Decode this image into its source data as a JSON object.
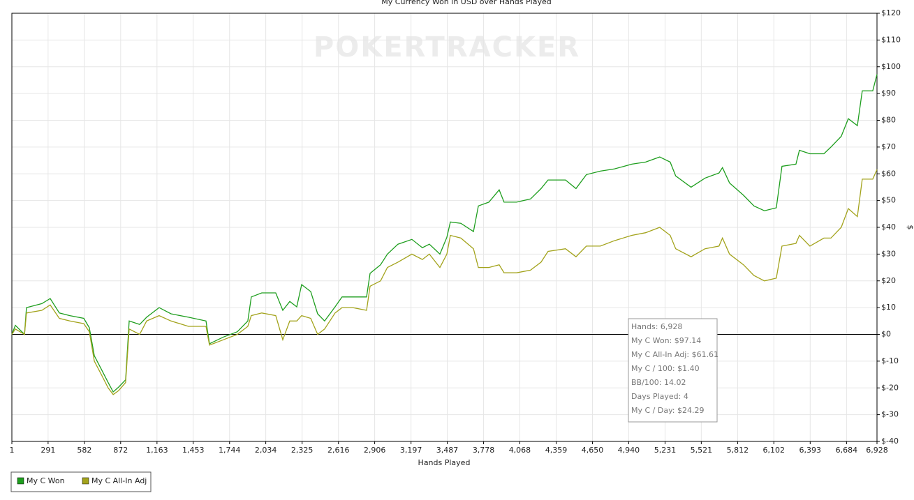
{
  "chart_data": {
    "type": "line",
    "title": "My Currency Won in USD over Hands Played",
    "watermark": "POKERTRACKER",
    "xlabel": "Hands Played",
    "ylabel": "$",
    "x": [
      1,
      29,
      102,
      118,
      241,
      308,
      381,
      465,
      577,
      621,
      661,
      717,
      772,
      812,
      856,
      912,
      940,
      1024,
      1080,
      1180,
      1275,
      1415,
      1555,
      1583,
      1695,
      1806,
      1890,
      1918,
      2002,
      2114,
      2170,
      2226,
      2282,
      2321,
      2394,
      2449,
      2505,
      2589,
      2645,
      2729,
      2841,
      2869,
      2953,
      3008,
      3092,
      3204,
      3288,
      3344,
      3428,
      3484,
      3512,
      3596,
      3697,
      3736,
      3820,
      3903,
      3942,
      4042,
      4154,
      4238,
      4294,
      4434,
      4518,
      4601,
      4713,
      4825,
      4965,
      5076,
      5188,
      5272,
      5316,
      5439,
      5551,
      5663,
      5691,
      5747,
      5859,
      5943,
      6027,
      6122,
      6167,
      6279,
      6307,
      6391,
      6503,
      6559,
      6642,
      6698,
      6771,
      6810,
      6894,
      6928
    ],
    "series": [
      {
        "name": "My C Won",
        "color": "#1e9e1e",
        "values": [
          0,
          3.4,
          0,
          10,
          11.5,
          13.4,
          8,
          7,
          6,
          2.5,
          -8,
          -13,
          -18,
          -21.5,
          -19.7,
          -17,
          5,
          3.7,
          6.4,
          10,
          7.7,
          6.4,
          5,
          -3.5,
          -1,
          1,
          5,
          14,
          15.5,
          15.5,
          9,
          12.3,
          10.3,
          18.6,
          16,
          7.7,
          5,
          10.3,
          14,
          14,
          14,
          22.8,
          26,
          30,
          33.7,
          35.5,
          32.4,
          33.7,
          30,
          36.3,
          42,
          41.5,
          38.4,
          48,
          49.4,
          54,
          49.4,
          49.4,
          50.6,
          54.5,
          57.7,
          57.7,
          54.5,
          59.7,
          61,
          61.8,
          63.6,
          64.4,
          66.3,
          64.4,
          59.2,
          55,
          58.4,
          60.3,
          62.3,
          56.6,
          52,
          48,
          46.2,
          47.3,
          62.8,
          63.6,
          68.8,
          67.5,
          67.5,
          70,
          74,
          80.6,
          78,
          91,
          91,
          97.14
        ]
      },
      {
        "name": "My C All-In Adj",
        "color": "#a3a31c",
        "values": [
          0,
          2,
          0,
          8,
          9,
          11,
          6,
          5,
          4,
          1,
          -10,
          -15,
          -20,
          -22.5,
          -21,
          -18,
          2,
          0,
          5,
          7,
          5,
          3,
          3,
          -4,
          -2,
          0,
          3,
          7,
          8,
          7,
          -2,
          5,
          5,
          7,
          6,
          0,
          2,
          8,
          10,
          10,
          9,
          18,
          20,
          25,
          27,
          30,
          28,
          30,
          25,
          30,
          37,
          36,
          32,
          25,
          25,
          26,
          23,
          23,
          24,
          27,
          31,
          32,
          29,
          33,
          33,
          35,
          37,
          38,
          40,
          37,
          32,
          29,
          32,
          33,
          36,
          30,
          26,
          22,
          20,
          21,
          33,
          34,
          37,
          33,
          36,
          36,
          40,
          47,
          44,
          58,
          58,
          61.61
        ]
      }
    ],
    "xlim": [
      1,
      6928
    ],
    "xticks": [
      1,
      {
        "value": 291,
        "label": "291"
      },
      {
        "value": 582,
        "label": "582"
      },
      {
        "value": 872,
        "label": "872"
      },
      {
        "value": 1163,
        "label": "1,163"
      },
      {
        "value": 1453,
        "label": "1,453"
      },
      {
        "value": 1744,
        "label": "1,744"
      },
      {
        "value": 2034,
        "label": "2,034"
      },
      {
        "value": 2325,
        "label": "2,325"
      },
      {
        "value": 2616,
        "label": "2,616"
      },
      {
        "value": 2906,
        "label": "2,906"
      },
      {
        "value": 3197,
        "label": "3,197"
      },
      {
        "value": 3487,
        "label": "3,487"
      },
      {
        "value": 3778,
        "label": "3,778"
      },
      {
        "value": 4068,
        "label": "4,068"
      },
      {
        "value": 4359,
        "label": "4,359"
      },
      {
        "value": 4650,
        "label": "4,650"
      },
      {
        "value": 4940,
        "label": "4,940"
      },
      {
        "value": 5231,
        "label": "5,231"
      },
      {
        "value": 5521,
        "label": "5,521"
      },
      {
        "value": 5812,
        "label": "5,812"
      },
      {
        "value": 6102,
        "label": "6,102"
      },
      {
        "value": 6393,
        "label": "6,393"
      },
      {
        "value": 6684,
        "label": "6,684"
      },
      {
        "value": 6928,
        "label": "6,928"
      }
    ],
    "ylim": [
      -40,
      120
    ],
    "yticks": [
      {
        "value": 120,
        "label": "$120"
      },
      {
        "value": 110,
        "label": "$110"
      },
      {
        "value": 100,
        "label": "$100"
      },
      {
        "value": 90,
        "label": "$90"
      },
      {
        "value": 80,
        "label": "$80"
      },
      {
        "value": 70,
        "label": "$70"
      },
      {
        "value": 60,
        "label": "$60"
      },
      {
        "value": 50,
        "label": "$50"
      },
      {
        "value": 40,
        "label": "$40"
      },
      {
        "value": 30,
        "label": "$30"
      },
      {
        "value": 20,
        "label": "$20"
      },
      {
        "value": 10,
        "label": "$10"
      },
      {
        "value": 0,
        "label": "$0"
      },
      {
        "value": -10,
        "label": "$-10"
      },
      {
        "value": -20,
        "label": "$-20"
      },
      {
        "value": -30,
        "label": "$-30"
      },
      {
        "value": -40,
        "label": "$-40"
      }
    ],
    "grid": true,
    "legend": "bottom-left",
    "tooltip": [
      "Hands: 6,928",
      "My C Won: $97.14",
      "My C All-In Adj: $61.61",
      "My C / 100: $1.40",
      "BB/100: 14.02",
      "Days Played: 4",
      "My C / Day: $24.29"
    ]
  }
}
